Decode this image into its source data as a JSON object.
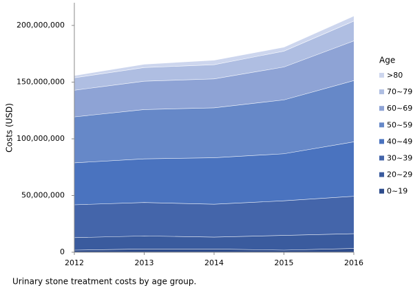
{
  "chart_data": {
    "type": "stacked-area",
    "caption": "Urinary stone treatment costs by age group.",
    "y_label": "Costs (USD)",
    "legend_title": "Age",
    "legend": "right",
    "categories": [
      "2012",
      "2013",
      "2014",
      "2015",
      "2016"
    ],
    "ylim": [
      0,
      220000000
    ],
    "yticks": [
      0,
      {
        "value": 50000000,
        "label": "50,000,000"
      },
      {
        "value": 100000000,
        "label": "100,000,000"
      },
      {
        "value": 150000000,
        "label": "150,000,000"
      },
      {
        "value": 200000000,
        "label": "200,000,000"
      }
    ],
    "series": [
      {
        "name": "0~19",
        "color": "#2e4c8c",
        "values": [
          2000000,
          3000000,
          3000000,
          2000000,
          3500000
        ]
      },
      {
        "name": "20~29",
        "color": "#3a5b9e",
        "values": [
          11000000,
          11500000,
          10500000,
          13000000,
          13000000
        ]
      },
      {
        "name": "30~39",
        "color": "#4465aa",
        "values": [
          29000000,
          29500000,
          29000000,
          30500000,
          33000000
        ]
      },
      {
        "name": "40~49",
        "color": "#4a73bf",
        "values": [
          37000000,
          38500000,
          41000000,
          41500000,
          48000000
        ]
      },
      {
        "name": "50~59",
        "color": "#6688c8",
        "values": [
          40500000,
          43500000,
          44000000,
          47500000,
          54000000
        ]
      },
      {
        "name": "60~69",
        "color": "#8ea3d5",
        "values": [
          23500000,
          25000000,
          25500000,
          29000000,
          35000000
        ]
      },
      {
        "name": "70~79",
        "color": "#afbee2",
        "values": [
          11000000,
          12000000,
          12500000,
          14000000,
          17500000
        ]
      },
      {
        "name": ">80",
        "color": "#cdd6ee",
        "values": [
          2000000,
          3000000,
          4000000,
          3500000,
          4500000
        ]
      }
    ]
  }
}
